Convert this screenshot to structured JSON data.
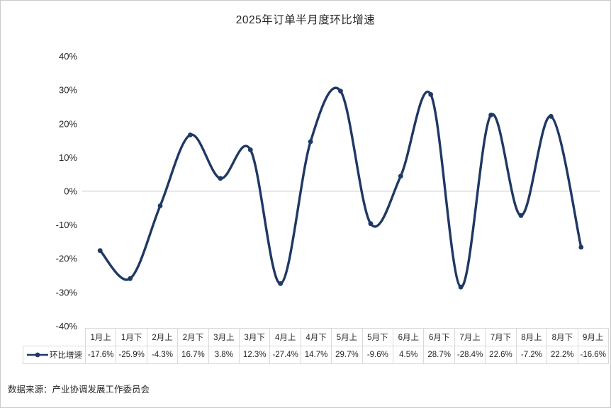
{
  "source_text": "数据来源：产业协调发展工作委员会",
  "chart_data": {
    "type": "line",
    "title": "2025年订单半月度环比增速",
    "categories": [
      "1月上",
      "1月下",
      "2月上",
      "2月下",
      "3月上",
      "3月下",
      "4月上",
      "4月下",
      "5月上",
      "5月下",
      "6月上",
      "6月下",
      "7月上",
      "7月下",
      "8月上",
      "8月下",
      "9月上"
    ],
    "series": [
      {
        "name": "环比增速",
        "values": [
          -17.6,
          -25.9,
          -4.3,
          16.7,
          3.8,
          12.3,
          -27.4,
          14.7,
          29.7,
          -9.6,
          4.5,
          28.7,
          -28.4,
          22.6,
          -7.2,
          22.2,
          -16.6
        ],
        "labels": [
          "-17.6%",
          "-25.9%",
          "-4.3%",
          "16.7%",
          "3.8%",
          "12.3%",
          "-27.4%",
          "14.7%",
          "29.7%",
          "-9.6%",
          "4.5%",
          "28.7%",
          "-28.4%",
          "22.6%",
          "-7.2%",
          "22.2%",
          "-16.6%"
        ]
      }
    ],
    "ylim": [
      -40,
      40
    ],
    "ytick_step": 10,
    "ytick_labels": [
      "40%",
      "30%",
      "20%",
      "10%",
      "0%",
      "-10%",
      "-20%",
      "-30%",
      "-40%"
    ],
    "grid": "zero-line-only",
    "smooth": true,
    "markers": true,
    "legend_position": "table-left",
    "line_color": "#1F3864",
    "grid_color": "#D9D9D9",
    "text_color": "#262626"
  }
}
